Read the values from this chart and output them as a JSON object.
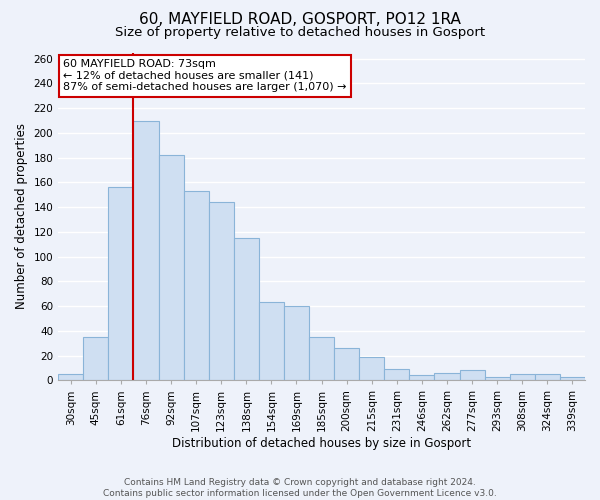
{
  "title": "60, MAYFIELD ROAD, GOSPORT, PO12 1RA",
  "subtitle": "Size of property relative to detached houses in Gosport",
  "xlabel": "Distribution of detached houses by size in Gosport",
  "ylabel": "Number of detached properties",
  "bar_labels": [
    "30sqm",
    "45sqm",
    "61sqm",
    "76sqm",
    "92sqm",
    "107sqm",
    "123sqm",
    "138sqm",
    "154sqm",
    "169sqm",
    "185sqm",
    "200sqm",
    "215sqm",
    "231sqm",
    "246sqm",
    "262sqm",
    "277sqm",
    "293sqm",
    "308sqm",
    "324sqm",
    "339sqm"
  ],
  "bar_values": [
    5,
    35,
    156,
    210,
    182,
    153,
    144,
    115,
    63,
    60,
    35,
    26,
    19,
    9,
    4,
    6,
    8,
    3,
    5,
    5,
    3
  ],
  "bar_color": "#cfdff2",
  "bar_edge_color": "#8ab4d8",
  "vline_color": "#cc0000",
  "annotation_title": "60 MAYFIELD ROAD: 73sqm",
  "annotation_line1": "← 12% of detached houses are smaller (141)",
  "annotation_line2": "87% of semi-detached houses are larger (1,070) →",
  "annotation_box_color": "#ffffff",
  "annotation_box_edge": "#cc0000",
  "ylim": [
    0,
    265
  ],
  "yticks": [
    0,
    20,
    40,
    60,
    80,
    100,
    120,
    140,
    160,
    180,
    200,
    220,
    240,
    260
  ],
  "footer_line1": "Contains HM Land Registry data © Crown copyright and database right 2024.",
  "footer_line2": "Contains public sector information licensed under the Open Government Licence v3.0.",
  "background_color": "#eef2fa",
  "plot_bg_color": "#eef2fa",
  "grid_color": "#ffffff",
  "title_fontsize": 11,
  "subtitle_fontsize": 9.5,
  "label_fontsize": 8.5,
  "tick_fontsize": 7.5,
  "annotation_fontsize": 8,
  "footer_fontsize": 6.5
}
